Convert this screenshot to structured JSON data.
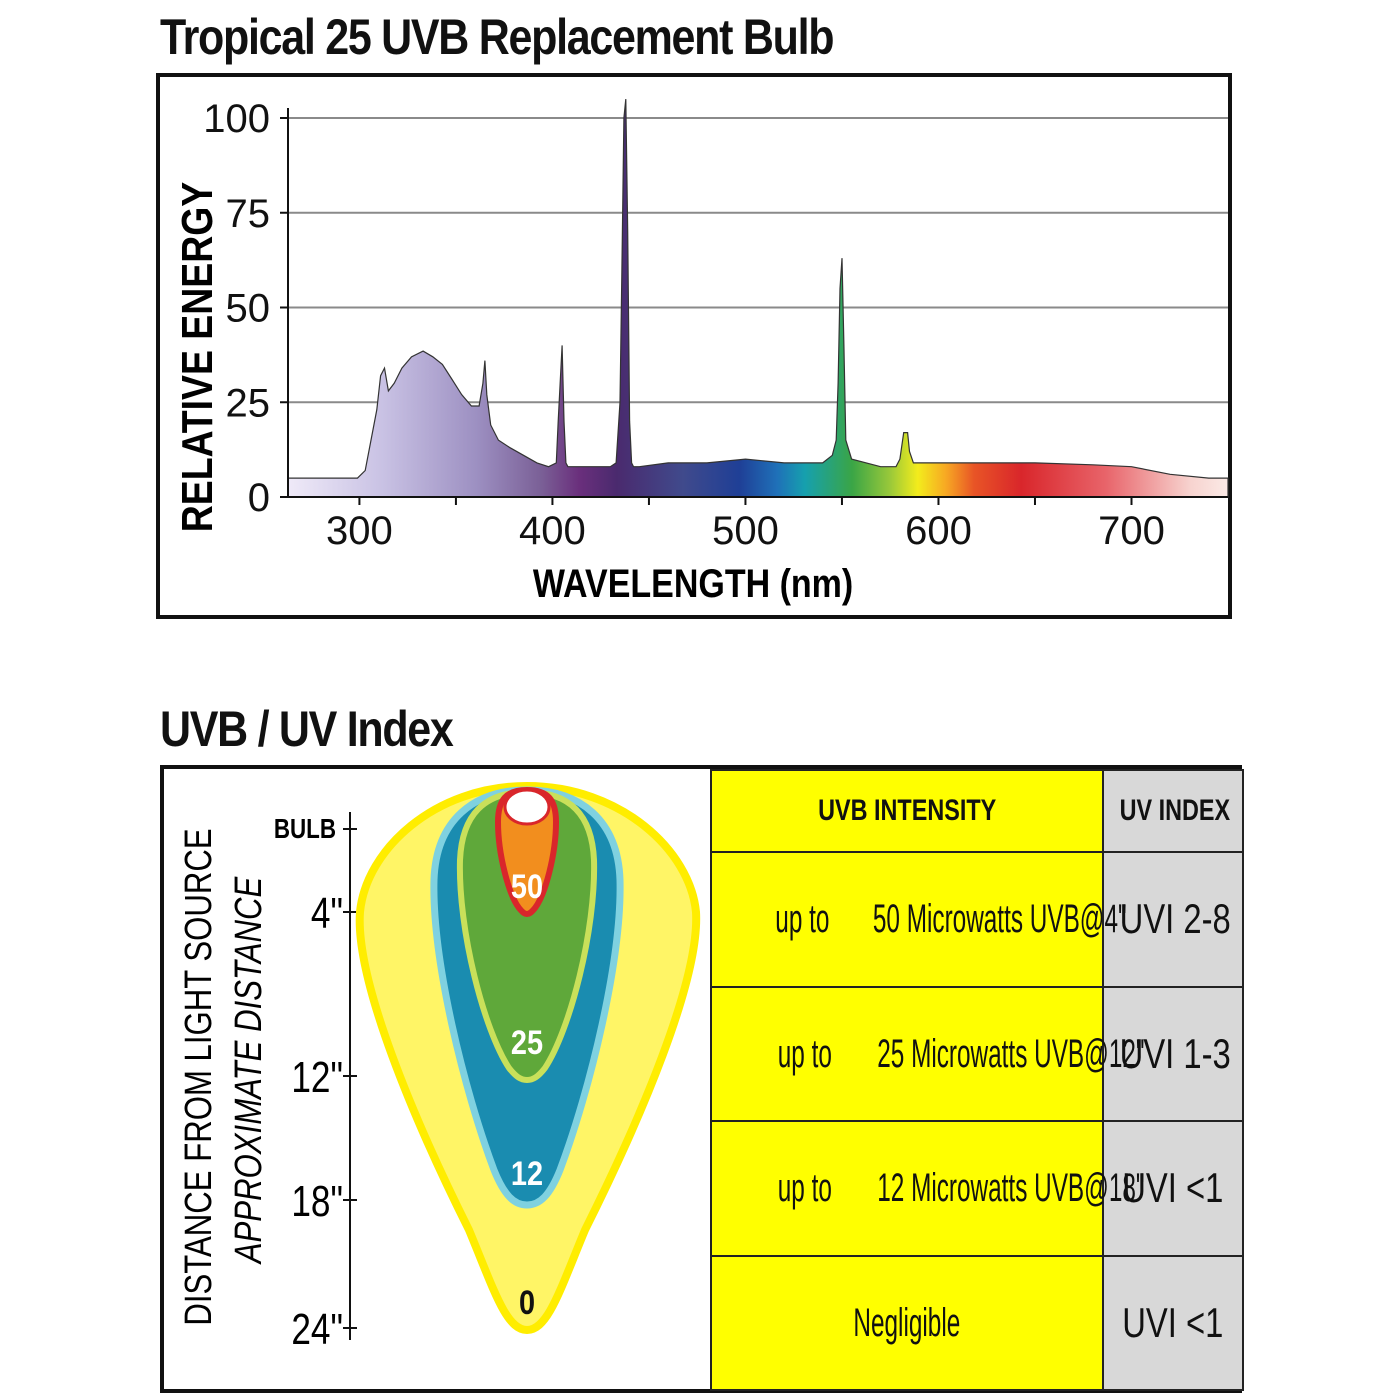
{
  "chart_data": [
    {
      "type": "area",
      "title": "Tropical 25 UVB Replacement Bulb",
      "xlabel": "WAVELENGTH (nm)",
      "ylabel": "RELATIVE ENERGY",
      "xlim": [
        263,
        750
      ],
      "ylim": [
        0,
        100
      ],
      "x_ticks": [
        300,
        400,
        500,
        600,
        700
      ],
      "y_ticks": [
        0,
        25,
        50,
        75,
        100
      ],
      "grid": true,
      "series": [
        {
          "x": [
            263,
            290,
            299,
            303,
            306,
            309,
            311,
            313,
            315,
            318,
            322,
            327,
            333,
            338,
            343,
            348,
            353,
            358,
            362,
            364,
            365,
            366,
            368,
            372,
            378,
            385,
            392,
            398,
            402,
            403,
            405,
            406,
            407,
            408,
            410,
            420,
            430,
            433,
            435,
            436,
            437,
            438,
            439,
            440,
            441,
            442,
            445,
            460,
            480,
            500,
            520,
            540,
            545,
            547,
            548,
            549,
            550,
            551,
            552,
            555,
            570,
            578,
            580,
            582,
            584,
            585,
            587,
            590,
            600,
            620,
            650,
            680,
            700,
            720,
            740,
            750
          ],
          "y": [
            5,
            5,
            5,
            7,
            15,
            23,
            32,
            34,
            28,
            30,
            34,
            37,
            38.5,
            37,
            35,
            31,
            27,
            24,
            24,
            30,
            36,
            27,
            19,
            15,
            13,
            11,
            9,
            8,
            9,
            20,
            40,
            20,
            9,
            8,
            8,
            8,
            8,
            9,
            25,
            60,
            100,
            105,
            70,
            20,
            9,
            8,
            8,
            9,
            9,
            10,
            9,
            9,
            11,
            15,
            30,
            55,
            63,
            40,
            15,
            10,
            8,
            8,
            10,
            17,
            17,
            12,
            9,
            9,
            9,
            9,
            9,
            8.5,
            8,
            6,
            5,
            5
          ]
        }
      ]
    },
    {
      "type": "diagram",
      "title": "UVB / UV Index",
      "ylabel": "DISTANCE FROM LIGHT SOURCE",
      "ylabel_sub": "APPROXIMATE DISTANCE",
      "distance_ticks": [
        "BULB",
        "4\"",
        "12\"",
        "18\"",
        "24\""
      ],
      "zone_labels": [
        "50",
        "25",
        "12",
        "0"
      ],
      "zone_colors": {
        "zero": "#fff566",
        "twelve": "#1a8cb0",
        "twentyfive": "#5fa83a",
        "fifty": "#f28e1e",
        "bulb": "#ffffff",
        "outline_yellow": "#ffed00",
        "outline_cyan": "#7fd1e0",
        "outline_lime": "#c9e05a",
        "outline_red": "#d9262b"
      }
    }
  ],
  "uv_table": {
    "headers": [
      "UVB INTENSITY",
      "UV INDEX"
    ],
    "rows": [
      {
        "intensity_line1": "up to",
        "intensity_line2": "50 Microwatts UVB@4\"",
        "uvi": "UVI 2-8"
      },
      {
        "intensity_line1": "up to",
        "intensity_line2": "25 Microwatts UVB@12\"",
        "uvi": "UVI 1-3"
      },
      {
        "intensity_line1": "up to",
        "intensity_line2": "12 Microwatts UVB@18\"",
        "uvi": "UVI <1"
      },
      {
        "intensity_line1": "Negligible",
        "intensity_line2": "",
        "uvi": "UVI <1"
      }
    ]
  }
}
